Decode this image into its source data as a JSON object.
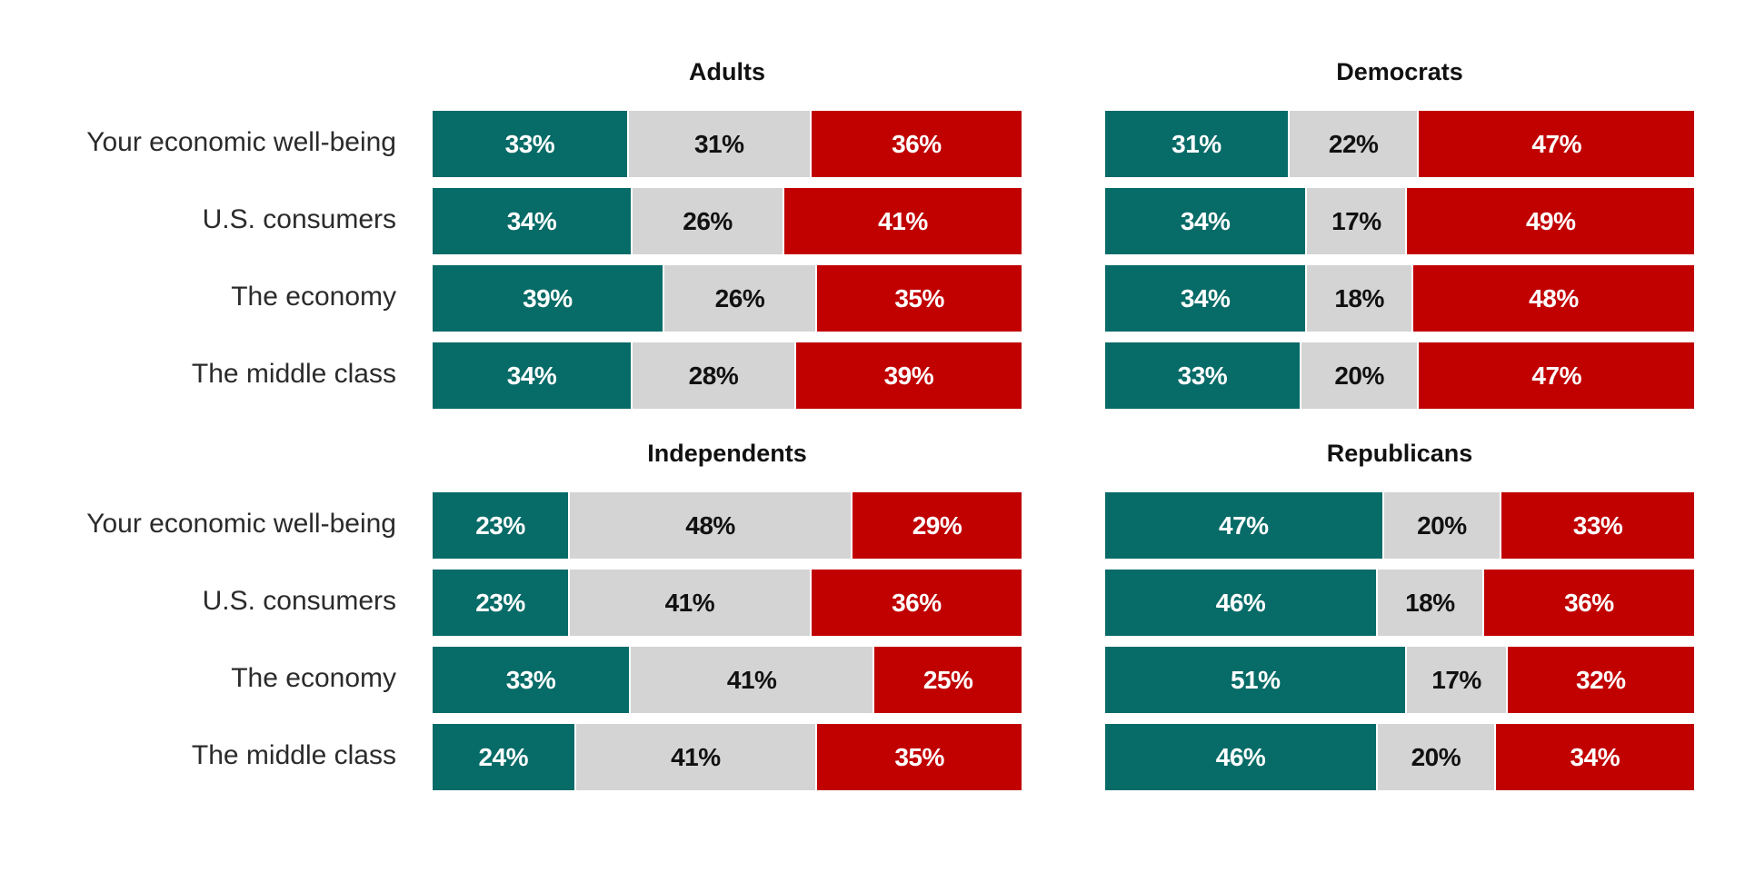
{
  "chart_data": [
    {
      "type": "bar",
      "title": "Adults",
      "categories": [
        "Your economic well-being",
        "U.S. consumers",
        "The economy",
        "The middle class"
      ],
      "series": [
        {
          "values": [
            33,
            34,
            39,
            34
          ]
        },
        {
          "values": [
            31,
            26,
            26,
            28
          ]
        },
        {
          "values": [
            36,
            41,
            35,
            39
          ]
        }
      ],
      "labels": [
        [
          "33%",
          "31%",
          "36%"
        ],
        [
          "34%",
          "26%",
          "41%"
        ],
        [
          "39%",
          "26%",
          "35%"
        ],
        [
          "34%",
          "28%",
          "39%"
        ]
      ]
    },
    {
      "type": "bar",
      "title": "Democrats",
      "categories": [
        "Your economic well-being",
        "U.S. consumers",
        "The economy",
        "The middle class"
      ],
      "series": [
        {
          "values": [
            31,
            34,
            34,
            33
          ]
        },
        {
          "values": [
            22,
            17,
            18,
            20
          ]
        },
        {
          "values": [
            47,
            49,
            48,
            47
          ]
        }
      ],
      "labels": [
        [
          "31%",
          "22%",
          "47%"
        ],
        [
          "34%",
          "17%",
          "49%"
        ],
        [
          "34%",
          "18%",
          "48%"
        ],
        [
          "33%",
          "20%",
          "47%"
        ]
      ]
    },
    {
      "type": "bar",
      "title": "Independents",
      "categories": [
        "Your economic well-being",
        "U.S. consumers",
        "The economy",
        "The middle class"
      ],
      "series": [
        {
          "values": [
            23,
            23,
            33,
            24
          ]
        },
        {
          "values": [
            48,
            41,
            41,
            41
          ]
        },
        {
          "values": [
            29,
            36,
            25,
            35
          ]
        }
      ],
      "labels": [
        [
          "23%",
          "48%",
          "29%"
        ],
        [
          "23%",
          "41%",
          "36%"
        ],
        [
          "33%",
          "41%",
          "25%"
        ],
        [
          "24%",
          "41%",
          "35%"
        ]
      ]
    },
    {
      "type": "bar",
      "title": "Republicans",
      "categories": [
        "Your economic well-being",
        "U.S. consumers",
        "The economy",
        "The middle class"
      ],
      "series": [
        {
          "values": [
            47,
            46,
            51,
            46
          ]
        },
        {
          "values": [
            20,
            18,
            17,
            20
          ]
        },
        {
          "values": [
            33,
            36,
            32,
            34
          ]
        }
      ],
      "labels": [
        [
          "47%",
          "20%",
          "33%"
        ],
        [
          "46%",
          "18%",
          "36%"
        ],
        [
          "51%",
          "17%",
          "32%"
        ],
        [
          "46%",
          "20%",
          "34%"
        ]
      ]
    }
  ],
  "colors": {
    "segments": [
      "#076b67",
      "#d4d4d4",
      "#c10000"
    ],
    "label_text": [
      "#ffffff",
      "#111111",
      "#ffffff"
    ]
  }
}
